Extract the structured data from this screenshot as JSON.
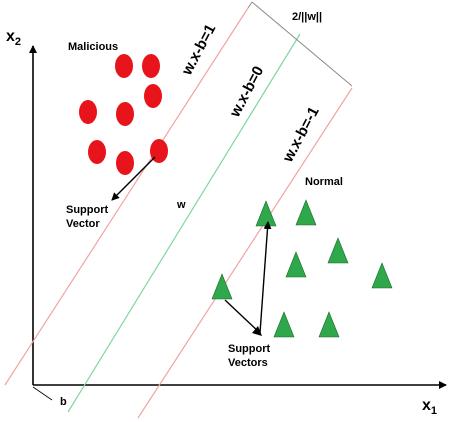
{
  "axes": {
    "x_label": "x",
    "x_sub": "1",
    "y_label": "x",
    "y_sub": "2"
  },
  "lines": {
    "upper": "w.x-b=1",
    "middle": "w.x-b=0",
    "lower": "w.x-b=-1"
  },
  "margin_label": "2/||w||",
  "w_label": "w",
  "b_label": "b",
  "classes": {
    "malicious": "Malicious",
    "normal": "Normal"
  },
  "support_vector_label": [
    "Support",
    "Vector"
  ],
  "support_vectors_label": [
    "Support",
    "Vectors"
  ],
  "colors": {
    "malicious": "#e8141b",
    "normal": "#2ea84a",
    "boundary_lines": "#f2a3a3",
    "middle_line": "#7fd6a0",
    "margin_lines": "#8c8c8c"
  }
}
